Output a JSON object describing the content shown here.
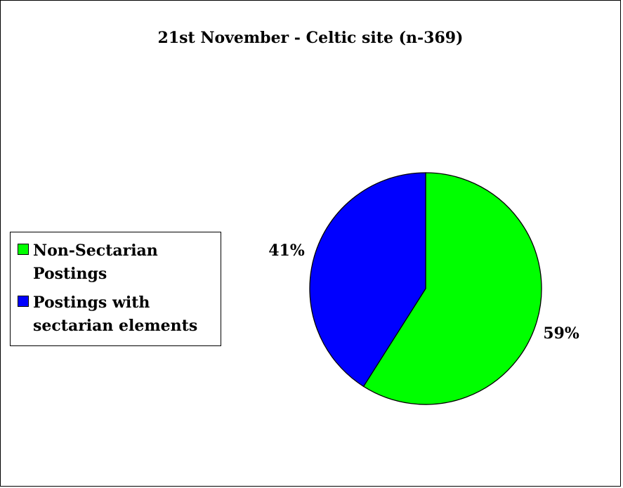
{
  "chart_data": {
    "type": "pie",
    "title": "21st November - Celtic site (n-369)",
    "categories": [
      "Non-Sectarian Postings",
      "Postings with sectarian elements"
    ],
    "values": [
      59,
      41
    ],
    "data_labels": [
      "59%",
      "41%"
    ],
    "colors": [
      "#00ff00",
      "#0000ff"
    ],
    "legend_position": "left"
  },
  "legend": {
    "items": [
      {
        "label": "Non-Sectarian Postings",
        "color": "#00ff00"
      },
      {
        "label": "Postings with sectarian elements",
        "color": "#0000ff"
      }
    ]
  }
}
